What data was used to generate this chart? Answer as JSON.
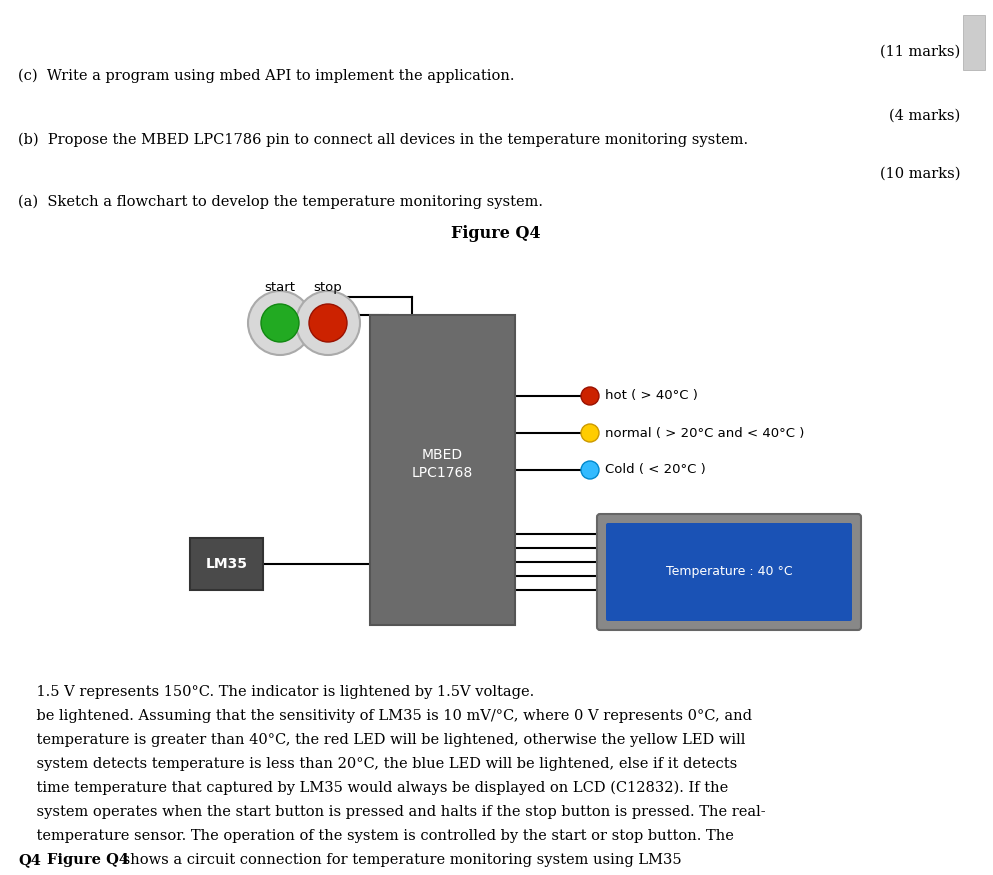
{
  "bg_color": "#ffffff",
  "text_color": "#000000",
  "lcd_text": "Temperature : 40 °C",
  "figure_caption": "Figure Q4",
  "mbed_color": "#6b6b6b",
  "lm35_color": "#4a4a4a",
  "lcd_outer_color": "#888888",
  "lcd_inner_color": "#1a52b5",
  "qa_text": "(a)  Sketch a flowchart to develop the temperature monitoring system.",
  "qa_marks": "(10 marks)",
  "qb_text": "(b)  Propose the MBED LPC1786 pin to connect all devices in the temperature monitoring system.",
  "qb_marks": "(4 marks)",
  "qc_text": "(c)  Write a program using mbed API to implement the application.",
  "qc_marks": "(11 marks)"
}
